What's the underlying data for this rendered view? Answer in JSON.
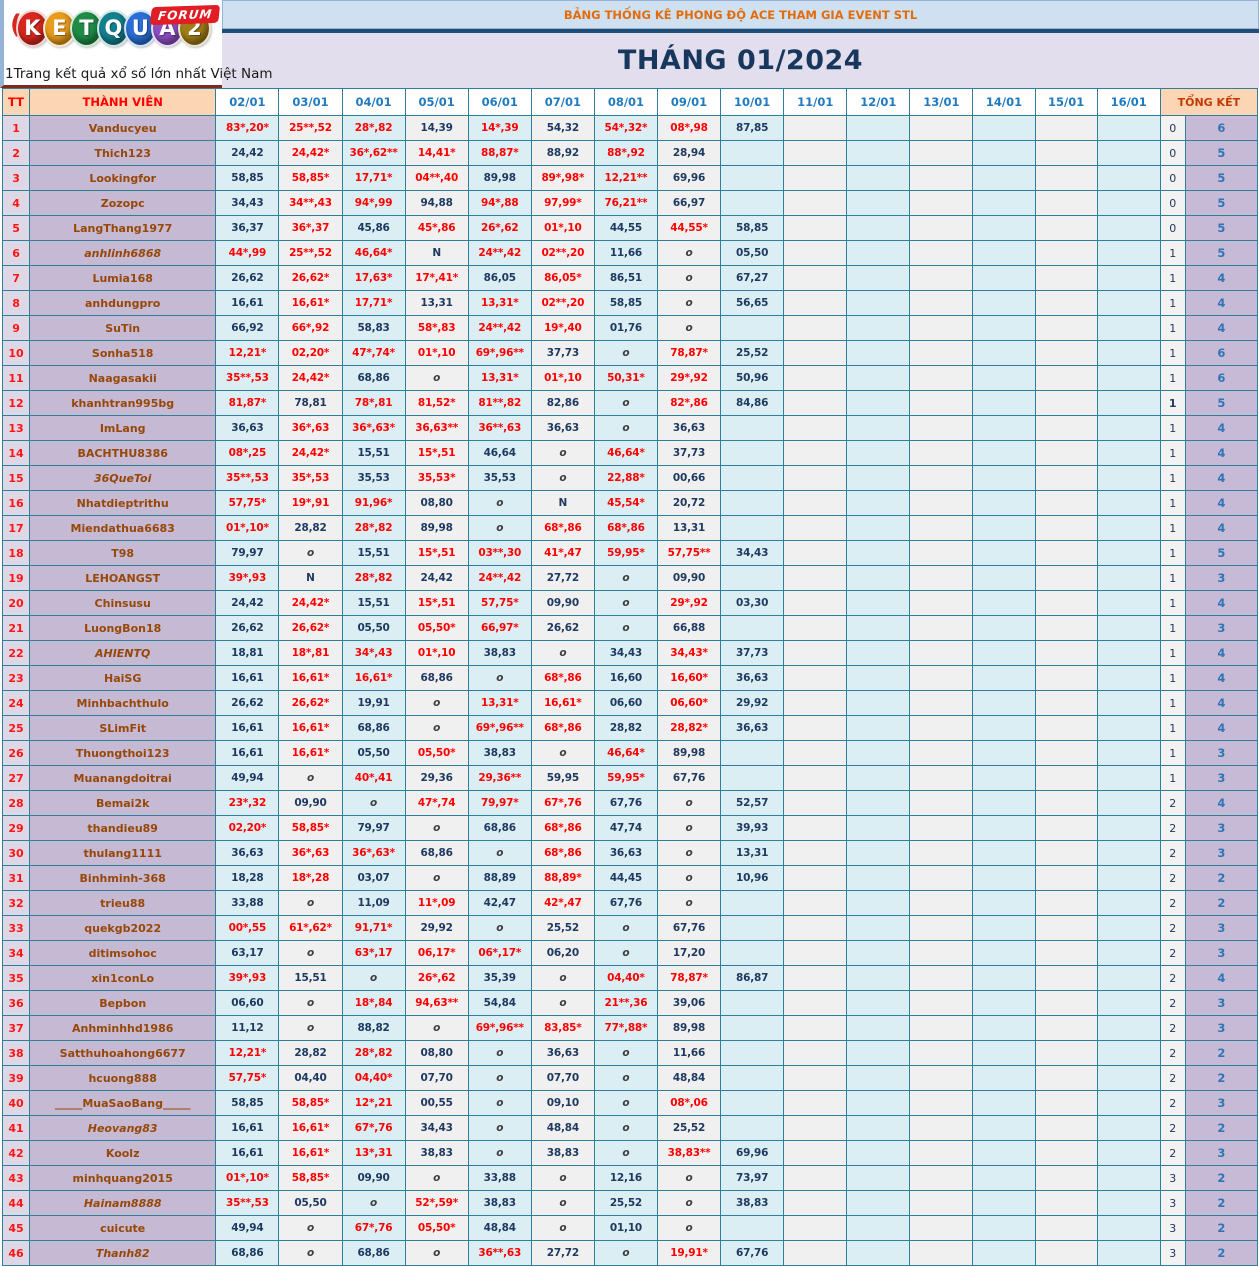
{
  "logo": {
    "letters": [
      {
        "ch": "K",
        "color": "#d6281e"
      },
      {
        "ch": "E",
        "color": "#e89c1d"
      },
      {
        "ch": "T",
        "color": "#1e8c46"
      },
      {
        "ch": "Q",
        "color": "#14808f"
      },
      {
        "ch": "U",
        "color": "#2b6fd6"
      },
      {
        "ch": "A",
        "color": "#8d4fc2"
      },
      {
        "ch": "2",
        "color": "#a07d18"
      }
    ],
    "forum_label": "FORUM",
    "tagline": "1Trang kết quả xổ số lớn nhất Việt Nam"
  },
  "header": {
    "title_bar": "BẢNG THỐNG KÊ PHONG ĐỘ ACE THAM GIA EVENT STL",
    "month_title": "THÁNG 01/2024"
  },
  "colors": {
    "grid": "#2e8099",
    "header_fill": "#fcd5b4",
    "tt_fill": "#ded8e6",
    "name_fill": "#c5b9d3",
    "col_even": "#daeef3",
    "col_odd": "#f1f0f0",
    "sum2_fill": "#c7bad6",
    "red_value": "#fe0000",
    "navy_value": "#1f3a60",
    "title_bar_fill": "#cfe0f1",
    "title_bar_text": "#e36c0a",
    "month_fill": "#e3deed"
  },
  "table": {
    "corner_label": "TT",
    "member_header": "THÀNH VIÊN",
    "date_headers": [
      "02/01",
      "03/01",
      "04/01",
      "05/01",
      "06/01",
      "07/01",
      "08/01",
      "09/01",
      "10/01",
      "11/01",
      "12/01",
      "13/01",
      "14/01",
      "15/01",
      "16/01"
    ],
    "summary_header": "TỔNG KẾT",
    "rows": [
      {
        "tt": "1",
        "name": "Vanducyeu",
        "italic": false,
        "cells": [
          "83*,20*",
          "25**,52",
          "28*,82",
          "14,39",
          "14*,39",
          "54,32",
          "54*,32*",
          "08*,98",
          "87,85"
        ],
        "sum1": "0",
        "sum2": "6"
      },
      {
        "tt": "2",
        "name": "Thich123",
        "italic": false,
        "cells": [
          "24,42",
          "24,42*",
          "36*,62**",
          "14,41*",
          "88,87*",
          "88,92",
          "88*,92",
          "28,94",
          ""
        ],
        "sum1": "0",
        "sum2": "5"
      },
      {
        "tt": "3",
        "name": "Lookingfor",
        "italic": false,
        "cells": [
          "58,85",
          "58,85*",
          "17,71*",
          "04**,40",
          "89,98",
          "89*,98*",
          "12,21**",
          "69,96",
          ""
        ],
        "sum1": "0",
        "sum2": "5"
      },
      {
        "tt": "4",
        "name": "Zozopc",
        "italic": false,
        "cells": [
          "34,43",
          "34**,43",
          "94*,99",
          "94,88",
          "94*,88",
          "97,99*",
          "76,21**",
          "66,97",
          ""
        ],
        "sum1": "0",
        "sum2": "5"
      },
      {
        "tt": "5",
        "name": "LangThang1977",
        "italic": false,
        "cells": [
          "36,37",
          "36*,37",
          "45,86",
          "45*,86",
          "26*,62",
          "01*,10",
          "44,55",
          "44,55*",
          "58,85"
        ],
        "sum1": "0",
        "sum2": "5"
      },
      {
        "tt": "6",
        "name": "anhlinh6868",
        "italic": true,
        "cells": [
          "44*,99",
          "25**,52",
          "46,64*",
          "N",
          "24**,42",
          "02**,20",
          "11,66",
          "o",
          "05,50"
        ],
        "sum1": "1",
        "sum2": "5"
      },
      {
        "tt": "7",
        "name": "Lumia168",
        "italic": false,
        "cells": [
          "26,62",
          "26,62*",
          "17,63*",
          "17*,41*",
          "86,05",
          "86,05*",
          "86,51",
          "o",
          "67,27"
        ],
        "sum1": "1",
        "sum2": "4"
      },
      {
        "tt": "8",
        "name": "anhdungpro",
        "italic": false,
        "cells": [
          "16,61",
          "16,61*",
          "17,71*",
          "13,31",
          "13,31*",
          "02**,20",
          "58,85",
          "o",
          "56,65"
        ],
        "sum1": "1",
        "sum2": "4"
      },
      {
        "tt": "9",
        "name": "SuTin",
        "italic": false,
        "cells": [
          "66,92",
          "66*,92",
          "58,83",
          "58*,83",
          "24**,42",
          "19*,40",
          "01,76",
          "o",
          ""
        ],
        "sum1": "1",
        "sum2": "4"
      },
      {
        "tt": "10",
        "name": "Sonha518",
        "italic": false,
        "cells": [
          "12,21*",
          "02,20*",
          "47*,74*",
          "01*,10",
          "69*,96**",
          "37,73",
          "o",
          "78,87*",
          "25,52"
        ],
        "sum1": "1",
        "sum2": "6"
      },
      {
        "tt": "11",
        "name": "Naagasakii",
        "italic": false,
        "cells": [
          "35**,53",
          "24,42*",
          "68,86",
          "o",
          "13,31*",
          "01*,10",
          "50,31*",
          "29*,92",
          "50,96"
        ],
        "sum1": "1",
        "sum2": "6"
      },
      {
        "tt": "12",
        "name": "khanhtran995bg",
        "italic": false,
        "sum1_bold": true,
        "cells": [
          "81,87*",
          "78,81",
          "78*,81",
          "81,52*",
          "81**,82",
          "82,86",
          "o",
          "82*,86",
          "84,86"
        ],
        "sum1": "1",
        "sum2": "5"
      },
      {
        "tt": "13",
        "name": "ImLang",
        "italic": false,
        "cells": [
          "36,63",
          "36*,63",
          "36*,63*",
          "36,63**",
          "36**,63",
          "36,63",
          "o",
          "36,63",
          ""
        ],
        "sum1": "1",
        "sum2": "4"
      },
      {
        "tt": "14",
        "name": "BACHTHU8386",
        "italic": false,
        "cells": [
          "08*,25",
          "24,42*",
          "15,51",
          "15*,51",
          "46,64",
          "o",
          "46,64*",
          "37,73",
          ""
        ],
        "sum1": "1",
        "sum2": "4"
      },
      {
        "tt": "15",
        "name": "36QueToi",
        "italic": true,
        "cells": [
          "35**,53",
          "35*,53",
          "35,53",
          "35,53*",
          "35,53",
          "o",
          "22,88*",
          "00,66",
          ""
        ],
        "sum1": "1",
        "sum2": "4"
      },
      {
        "tt": "16",
        "name": "Nhatdieptrithu",
        "italic": false,
        "cells": [
          "57,75*",
          "19*,91",
          "91,96*",
          "08,80",
          "o",
          "N",
          "45,54*",
          "20,72",
          ""
        ],
        "sum1": "1",
        "sum2": "4"
      },
      {
        "tt": "17",
        "name": "Miendathua6683",
        "italic": false,
        "cells": [
          "01*,10*",
          "28,82",
          "28*,82",
          "89,98",
          "o",
          "68*,86",
          "68*,86",
          "13,31",
          ""
        ],
        "sum1": "1",
        "sum2": "4"
      },
      {
        "tt": "18",
        "name": "T98",
        "italic": false,
        "cells": [
          "79,97",
          "o",
          "15,51",
          "15*,51",
          "03**,30",
          "41*,47",
          "59,95*",
          "57,75**",
          "34,43"
        ],
        "sum1": "1",
        "sum2": "5"
      },
      {
        "tt": "19",
        "name": "LEHOANGST",
        "italic": false,
        "cells": [
          "39*,93",
          "N",
          "28*,82",
          "24,42",
          "24**,42",
          "27,72",
          "o",
          "09,90",
          ""
        ],
        "sum1": "1",
        "sum2": "3"
      },
      {
        "tt": "20",
        "name": "Chinsusu",
        "italic": false,
        "cells": [
          "24,42",
          "24,42*",
          "15,51",
          "15*,51",
          "57,75*",
          "09,90",
          "o",
          "29*,92",
          "03,30"
        ],
        "sum1": "1",
        "sum2": "4"
      },
      {
        "tt": "21",
        "name": "LuongBon18",
        "italic": false,
        "cells": [
          "26,62",
          "26,62*",
          "05,50",
          "05,50*",
          "66,97*",
          "26,62",
          "o",
          "66,88",
          ""
        ],
        "sum1": "1",
        "sum2": "3"
      },
      {
        "tt": "22",
        "name": "AHIENTQ",
        "italic": true,
        "cells": [
          "18,81",
          "18*,81",
          "34*,43",
          "01*,10",
          "38,83",
          "o",
          "34,43",
          "34,43*",
          "37,73"
        ],
        "sum1": "1",
        "sum2": "4"
      },
      {
        "tt": "23",
        "name": "HaiSG",
        "italic": false,
        "cells": [
          "16,61",
          "16,61*",
          "16,61*",
          "68,86",
          "o",
          "68*,86",
          "16,60",
          "16,60*",
          "36,63"
        ],
        "sum1": "1",
        "sum2": "4"
      },
      {
        "tt": "24",
        "name": "Minhbachthulo",
        "italic": false,
        "cells": [
          "26,62",
          "26,62*",
          "19,91",
          "o",
          "13,31*",
          "16,61*",
          "06,60",
          "06,60*",
          "29,92"
        ],
        "sum1": "1",
        "sum2": "4"
      },
      {
        "tt": "25",
        "name": "SLimFit",
        "italic": false,
        "cells": [
          "16,61",
          "16,61*",
          "68,86",
          "o",
          "69*,96**",
          "68*,86",
          "28,82",
          "28,82*",
          "36,63"
        ],
        "sum1": "1",
        "sum2": "4"
      },
      {
        "tt": "26",
        "name": "Thuongthoi123",
        "italic": false,
        "cells": [
          "16,61",
          "16,61*",
          "05,50",
          "05,50*",
          "38,83",
          "o",
          "46,64*",
          "89,98",
          ""
        ],
        "sum1": "1",
        "sum2": "3"
      },
      {
        "tt": "27",
        "name": "Muanangdoitrai",
        "italic": false,
        "cells": [
          "49,94",
          "o",
          "40*,41",
          "29,36",
          "29,36**",
          "59,95",
          "59,95*",
          "67,76",
          ""
        ],
        "sum1": "1",
        "sum2": "3"
      },
      {
        "tt": "28",
        "name": "Bemai2k",
        "italic": false,
        "cells": [
          "23*,32",
          "09,90",
          "o",
          "47*,74",
          "79,97*",
          "67*,76",
          "67,76",
          "o",
          "52,57"
        ],
        "sum1": "2",
        "sum2": "4"
      },
      {
        "tt": "29",
        "name": "thandieu89",
        "italic": false,
        "cells": [
          "02,20*",
          "58,85*",
          "79,97",
          "o",
          "68,86",
          "68*,86",
          "47,74",
          "o",
          "39,93"
        ],
        "sum1": "2",
        "sum2": "3"
      },
      {
        "tt": "30",
        "name": "thulang1111",
        "italic": false,
        "cells": [
          "36,63",
          "36*,63",
          "36*,63*",
          "68,86",
          "o",
          "68*,86",
          "36,63",
          "o",
          "13,31"
        ],
        "sum1": "2",
        "sum2": "3"
      },
      {
        "tt": "31",
        "name": "Binhminh-368",
        "italic": false,
        "cells": [
          "18,28",
          "18*,28",
          "03,07",
          "o",
          "88,89",
          "88,89*",
          "44,45",
          "o",
          "10,96"
        ],
        "sum1": "2",
        "sum2": "2"
      },
      {
        "tt": "32",
        "name": "trieu88",
        "italic": false,
        "cells": [
          "33,88",
          "o",
          "11,09",
          "11*,09",
          "42,47",
          "42*,47",
          "67,76",
          "o",
          ""
        ],
        "sum1": "2",
        "sum2": "2"
      },
      {
        "tt": "33",
        "name": "quekgb2022",
        "italic": false,
        "cells": [
          "00*,55",
          "61*,62*",
          "91,71*",
          "29,92",
          "o",
          "25,52",
          "o",
          "67,76",
          ""
        ],
        "sum1": "2",
        "sum2": "3"
      },
      {
        "tt": "34",
        "name": "ditimsohoc",
        "italic": false,
        "cells": [
          "63,17",
          "o",
          "63*,17",
          "06,17*",
          "06*,17*",
          "06,20",
          "o",
          "17,20",
          ""
        ],
        "sum1": "2",
        "sum2": "3"
      },
      {
        "tt": "35",
        "name": "xin1conLo",
        "italic": false,
        "cells": [
          "39*,93",
          "15,51",
          "o",
          "26*,62",
          "35,39",
          "o",
          "04,40*",
          "78,87*",
          "86,87"
        ],
        "sum1": "2",
        "sum2": "4"
      },
      {
        "tt": "36",
        "name": "Bepbon",
        "italic": false,
        "cells": [
          "06,60",
          "o",
          "18*,84",
          "94,63**",
          "54,84",
          "o",
          "21**,36",
          "39,06",
          ""
        ],
        "sum1": "2",
        "sum2": "3"
      },
      {
        "tt": "37",
        "name": "Anhminhhd1986",
        "italic": false,
        "cells": [
          "11,12",
          "o",
          "88,82",
          "o",
          "69*,96**",
          "83,85*",
          "77*,88*",
          "89,98",
          ""
        ],
        "sum1": "2",
        "sum2": "3"
      },
      {
        "tt": "38",
        "name": "Satthuhoahong6677",
        "italic": false,
        "cells": [
          "12,21*",
          "28,82",
          "28*,82",
          "08,80",
          "o",
          "36,63",
          "o",
          "11,66",
          ""
        ],
        "sum1": "2",
        "sum2": "2"
      },
      {
        "tt": "39",
        "name": "hcuong888",
        "italic": false,
        "cells": [
          "57,75*",
          "04,40",
          "04,40*",
          "07,70",
          "o",
          "07,70",
          "o",
          "48,84",
          ""
        ],
        "sum1": "2",
        "sum2": "2"
      },
      {
        "tt": "40",
        "name": "_____MuaSaoBang_____",
        "italic": false,
        "cells": [
          "58,85",
          "58,85*",
          "12*,21",
          "00,55",
          "o",
          "09,10",
          "o",
          "08*,06",
          ""
        ],
        "sum1": "2",
        "sum2": "3"
      },
      {
        "tt": "41",
        "name": "Heovang83",
        "italic": true,
        "cells": [
          "16,61",
          "16,61*",
          "67*,76",
          "34,43",
          "o",
          "48,84",
          "o",
          "25,52",
          ""
        ],
        "sum1": "2",
        "sum2": "2"
      },
      {
        "tt": "42",
        "name": "Koolz",
        "italic": false,
        "cells": [
          "16,61",
          "16,61*",
          "13*,31",
          "38,83",
          "o",
          "38,83",
          "o",
          "38,83**",
          "69,96"
        ],
        "sum1": "2",
        "sum2": "3"
      },
      {
        "tt": "43",
        "name": "minhquang2015",
        "italic": false,
        "cells": [
          "01*,10*",
          "58,85*",
          "09,90",
          "o",
          "33,88",
          "o",
          "12,16",
          "o",
          "73,97"
        ],
        "sum1": "3",
        "sum2": "2"
      },
      {
        "tt": "44",
        "name": "Hainam8888",
        "italic": true,
        "cells": [
          "35**,53",
          "05,50",
          "o",
          "52*,59*",
          "38,83",
          "o",
          "25,52",
          "o",
          "38,83"
        ],
        "sum1": "3",
        "sum2": "2"
      },
      {
        "tt": "45",
        "name": "cuicute",
        "italic": false,
        "cells": [
          "49,94",
          "o",
          "67*,76",
          "05,50*",
          "48,84",
          "o",
          "01,10",
          "o",
          ""
        ],
        "sum1": "3",
        "sum2": "2"
      },
      {
        "tt": "46",
        "name": "Thanh82",
        "italic": true,
        "cells": [
          "68,86",
          "o",
          "68,86",
          "o",
          "36**,63",
          "27,72",
          "o",
          "19,91*",
          "67,76"
        ],
        "sum1": "3",
        "sum2": "2"
      }
    ]
  }
}
